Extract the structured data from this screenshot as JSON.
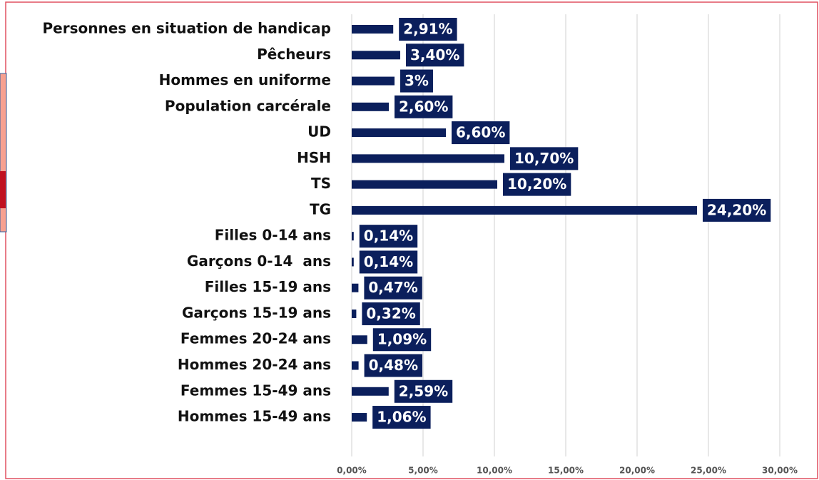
{
  "chart_data": {
    "type": "barh",
    "categories": [
      "Personnes en situation de handicap",
      "Pêcheurs",
      "Hommes en uniforme",
      "Population carcérale",
      "UD",
      "HSH",
      "TS",
      "TG",
      "Filles 0-14 ans",
      "Garçons 0-14  ans",
      "Filles 15-19 ans",
      "Garçons 15-19 ans",
      "Femmes 20-24 ans",
      "Hommes 20-24 ans",
      "Femmes 15-49 ans",
      "Hommes 15-49 ans"
    ],
    "values": [
      2.91,
      3.4,
      3,
      2.6,
      6.6,
      10.7,
      10.2,
      24.2,
      0.14,
      0.14,
      0.47,
      0.32,
      1.09,
      0.48,
      2.59,
      1.06
    ],
    "value_labels": [
      "2,91%",
      "3,40%",
      "3%",
      "2,60%",
      "6,60%",
      "10,70%",
      "10,20%",
      "24,20%",
      "0,14%",
      "0,14%",
      "0,47%",
      "0,32%",
      "1,09%",
      "0,48%",
      "2,59%",
      "1,06%"
    ],
    "color": "#0b1f5c",
    "xlim": [
      0,
      30
    ],
    "xticks": [
      {
        "value": 0,
        "label": "0,00%"
      },
      {
        "value": 5,
        "label": "5,00%"
      },
      {
        "value": 10,
        "label": "10,00%"
      },
      {
        "value": 15,
        "label": "15,00%"
      },
      {
        "value": 20,
        "label": "20,00%"
      },
      {
        "value": 25,
        "label": "25,00%"
      },
      {
        "value": 30,
        "label": "30,00%"
      }
    ],
    "grid": true
  }
}
